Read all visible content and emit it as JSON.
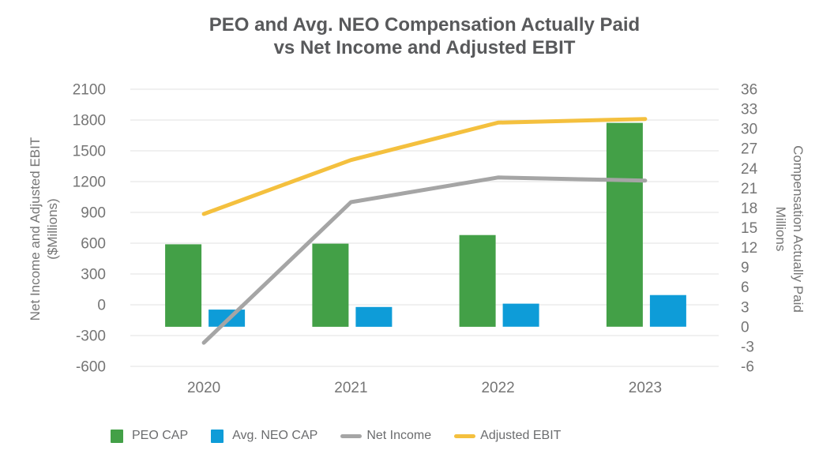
{
  "title": {
    "line1": "PEO and Avg. NEO Compensation Actually Paid",
    "line2": "vs Net Income and Adjusted EBIT"
  },
  "colors": {
    "grid": "#E8E8E8",
    "title_text": "#58595B",
    "axis_text": "#757575",
    "legend_text": "#6B6C6E"
  },
  "chart_data": {
    "type": "combo (bar + line, dual axis)",
    "categories": [
      "2020",
      "2021",
      "2022",
      "2023"
    ],
    "series": [
      {
        "name": "PEO CAP",
        "kind": "bar",
        "axis": "right",
        "color": "#43A047",
        "values": [
          12.5,
          12.6,
          13.9,
          30.9
        ]
      },
      {
        "name": "Avg. NEO CAP",
        "kind": "bar",
        "axis": "right",
        "color": "#0E9CD8",
        "values": [
          2.6,
          3.0,
          3.5,
          4.8
        ]
      },
      {
        "name": "Net Income",
        "kind": "line",
        "axis": "left",
        "color": "#A5A5A5",
        "values": [
          -370,
          1000,
          1240,
          1210
        ]
      },
      {
        "name": "Adjusted EBIT",
        "kind": "line",
        "axis": "left",
        "color": "#F4C03E",
        "values": [
          885,
          1410,
          1775,
          1810
        ]
      }
    ],
    "axes": {
      "left": {
        "label_line1": "Net Income and Adjusted EBIT",
        "label_line2": "($Millions)",
        "min": -600,
        "max": 2100,
        "step": 300,
        "ticks": [
          2100,
          1800,
          1500,
          1200,
          900,
          600,
          300,
          0,
          -300,
          -600
        ]
      },
      "right": {
        "label_line1": "Compensation Actually Paid",
        "label_line2": "Millions",
        "min": -6,
        "max": 36,
        "step": 3,
        "ticks": [
          36,
          33,
          30,
          27,
          24,
          21,
          18,
          15,
          12,
          9,
          6,
          3,
          0,
          -3,
          -6
        ]
      }
    },
    "grid": "horizontal gridlines at left-axis ticks only",
    "legend_position": "bottom",
    "bars_baseline": "right-axis 0"
  },
  "legend": {
    "items": [
      {
        "label": "PEO CAP"
      },
      {
        "label": "Avg. NEO CAP"
      },
      {
        "label": "Net Income"
      },
      {
        "label": "Adjusted EBIT"
      }
    ]
  }
}
